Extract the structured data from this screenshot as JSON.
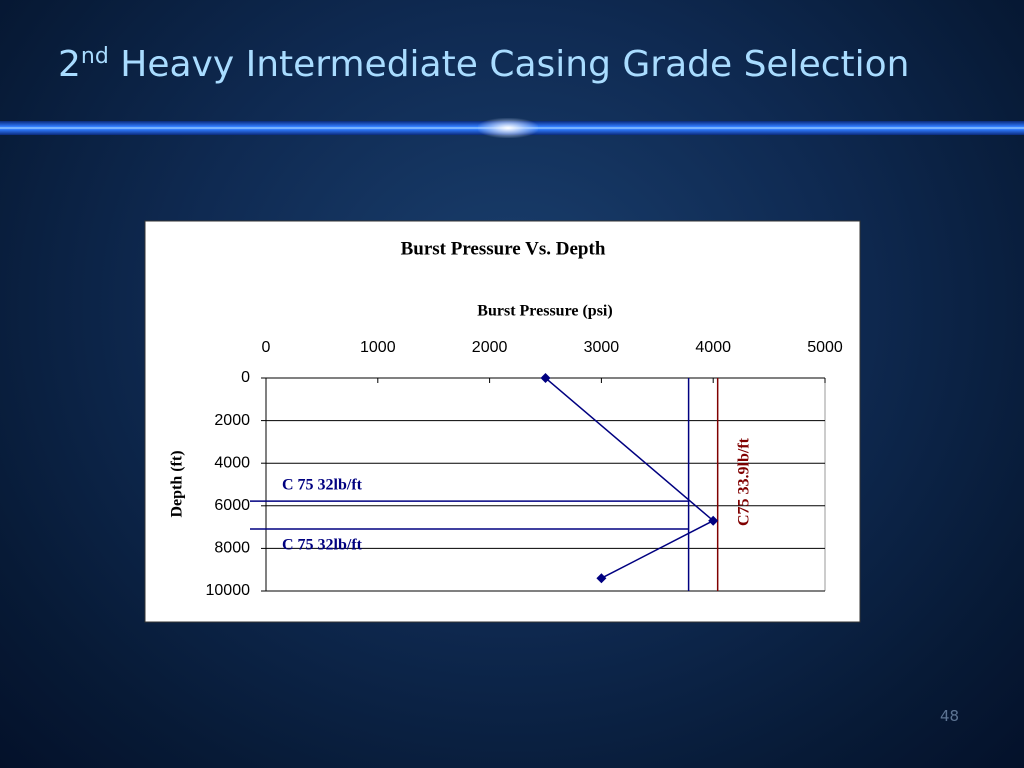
{
  "slide": {
    "title_num": "2",
    "title_sup": "nd",
    "title_main": "Heavy Intermediate Casing Grade Selection",
    "page_number": "48"
  },
  "chart_data": {
    "type": "line",
    "title": "Burst Pressure Vs. Depth",
    "x_label": "Burst Pressure (psi)",
    "y_label": "Depth (ft)",
    "x_axis_position": "top",
    "y_inverted": true,
    "xlim": [
      0,
      5000
    ],
    "xticks": [
      0,
      1000,
      2000,
      3000,
      4000,
      5000
    ],
    "ylim": [
      0,
      10000
    ],
    "yticks": [
      0,
      2000,
      4000,
      6000,
      8000,
      10000
    ],
    "grid": true,
    "series": [
      {
        "color": "#000080",
        "x": [
          2500,
          4000,
          3000
        ],
        "values": [
          0,
          6700,
          9400
        ]
      }
    ],
    "vlines": [
      {
        "value": 3780,
        "color": "#000080"
      },
      {
        "value": 4040,
        "color": "#800000"
      }
    ],
    "hlines": [
      {
        "value": 5780,
        "color": "#000080"
      },
      {
        "value": 7090,
        "color": "#000080"
      }
    ],
    "annotations": [
      {
        "text": "C 75 32lb/ft",
        "color": "#000080"
      },
      {
        "text": "C 75 32lb/ft",
        "color": "#000080"
      },
      {
        "text": "C75 33.9lb/ft",
        "color": "#800000"
      }
    ]
  }
}
